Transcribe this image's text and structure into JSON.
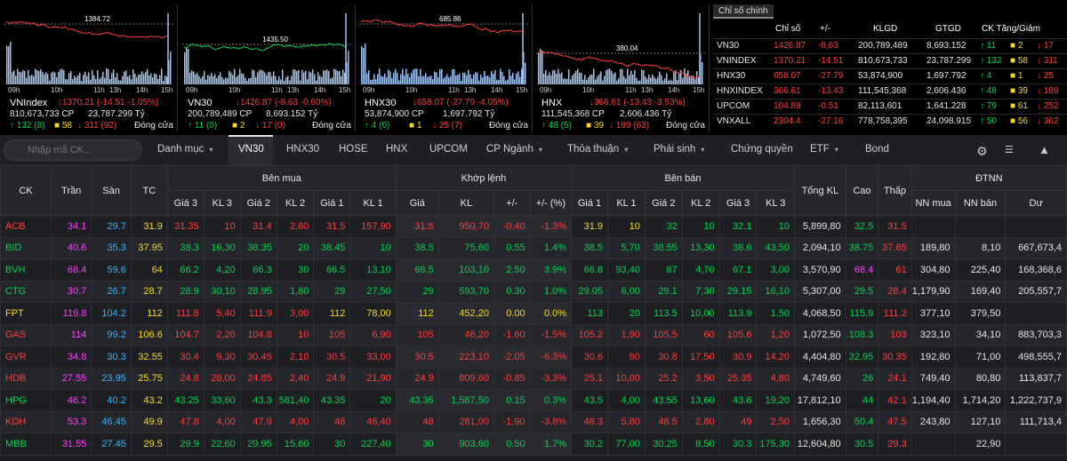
{
  "mini_charts": [
    {
      "name": "VNIndex",
      "change": "↓1370.21 (-14.51 -1.05%)",
      "ref": "1384.72",
      "vol": "810,673,733 CP",
      "val": "23,787.299 Tỷ",
      "up": "132",
      "ref_cnt": "8",
      "ceil": "",
      "down": "58",
      "floor": "311",
      "extra": "92",
      "up_label": "↑ 132 (8)",
      "down_label": "↓ 311 (92)",
      "mid": "■ 58",
      "status": "Đóng cửa"
    },
    {
      "name": "VN30",
      "change": "↓1426.87 (-8.63 -0.60%)",
      "ref": "1435.50",
      "vol": "200,789,489 CP",
      "val": "8,693.152 Tỷ",
      "up_label": "↑ 11 (0)",
      "mid": "■ 2",
      "down_label": "↓ 17 (0)",
      "status": "Đóng cửa"
    },
    {
      "name": "HNX30",
      "change": "↓658.07 (-27.79 -4.05%)",
      "ref": "685.86",
      "vol": "53,874,900 CP",
      "val": "1,697.792 Tỷ",
      "up_label": "↑ 4 (0)",
      "mid": "■ 1",
      "down_label": "↓ 25 (7)",
      "status": "Đóng cửa"
    },
    {
      "name": "HNX",
      "change": "↓366.61 (-13.43 -3.53%)",
      "ref": "380.04",
      "vol": "111,545,368 CP",
      "val": "2,606.436 Tỷ",
      "up_label": "↑ 48 (5)",
      "mid": "■ 39",
      "down_label": "↓ 189 (63)",
      "status": "Đóng cửa"
    }
  ],
  "x_ticks": [
    "09h",
    "10h",
    "11h",
    "13h",
    "14h",
    "15h"
  ],
  "index_table": {
    "tab": "Chỉ số chính",
    "headers": [
      "Chỉ số",
      "+/-",
      "KLGD",
      "GTGD",
      "CK Tăng/Giảm"
    ],
    "rows": [
      {
        "name": "VN30",
        "value": "1426.87",
        "chg": "-8.63",
        "klgd": "200,789,489",
        "gtgd": "8,693.152",
        "up": "↑ 11",
        "ref": "■ 2",
        "down": "↓ 17"
      },
      {
        "name": "VNINDEX",
        "value": "1370.21",
        "chg": "-14.51",
        "klgd": "810,673,733",
        "gtgd": "23,787.299",
        "up": "↑ 132",
        "ref": "■ 58",
        "down": "↓ 311"
      },
      {
        "name": "HNX30",
        "value": "658.07",
        "chg": "-27.79",
        "klgd": "53,874,900",
        "gtgd": "1,697.792",
        "up": "↑ 4",
        "ref": "■ 1",
        "down": "↓ 25"
      },
      {
        "name": "HNXINDEX",
        "value": "366.61",
        "chg": "-13.43",
        "klgd": "111,545,368",
        "gtgd": "2,606.436",
        "up": "↑ 48",
        "ref": "■ 39",
        "down": "↓ 189"
      },
      {
        "name": "UPCOM",
        "value": "104.89",
        "chg": "-0.51",
        "klgd": "82,113,601",
        "gtgd": "1,641.228",
        "up": "↑ 79",
        "ref": "■ 61",
        "down": "↓ 252"
      },
      {
        "name": "VNXALL",
        "value": "2304.4",
        "chg": "-27.16",
        "klgd": "778,758,395",
        "gtgd": "24,098.915",
        "up": "↑ 50",
        "ref": "■ 56",
        "down": "↓ 362"
      }
    ]
  },
  "toolbar": {
    "search_placeholder": "Nhập mã CK...",
    "tabs": [
      "Danh mục",
      "VN30",
      "HNX30",
      "HOSE",
      "HNX",
      "UPCOM",
      "CP Ngành",
      "Thỏa thuận",
      "Phái sinh",
      "Chứng quyền",
      "ETF",
      "Bond"
    ]
  },
  "table": {
    "groups": {
      "buy": "Bên mua",
      "match": "Khớp lệnh",
      "sell": "Bên bán",
      "foreign": "ĐTNN"
    },
    "cols": {
      "ck": "CK",
      "tran": "Trần",
      "san": "Sàn",
      "tc": "TC",
      "g3": "Giá 3",
      "kl3": "KL 3",
      "g2": "Giá 2",
      "kl2": "KL 2",
      "g1": "Giá 1",
      "kl1": "KL 1",
      "gia": "Giá",
      "kl": "KL",
      "chg": "+/-",
      "pct": "+/- (%)",
      "tong": "Tổng KL",
      "cao": "Cao",
      "thap": "Thấp",
      "nnmua": "NN mua",
      "nnban": "NN bán",
      "du": "Dư"
    },
    "rows": [
      [
        "ACB",
        "34.1",
        "29.7",
        "31.9",
        "31.35",
        "10",
        "31.4",
        "2,60",
        "31.5",
        "157,90",
        "31.5",
        "950,70",
        "-0.40",
        "-1.3%",
        "31.9",
        "10",
        "32",
        "10",
        "32.1",
        "10",
        "5,899,80",
        "32.5",
        "31.5",
        "",
        "",
        ""
      ],
      [
        "BID",
        "40.6",
        "35.3",
        "37.95",
        "38.3",
        "16,30",
        "38.35",
        "20",
        "38.45",
        "10",
        "38.5",
        "75,60",
        "0.55",
        "1.4%",
        "38.5",
        "5,70",
        "38.55",
        "13,30",
        "38.6",
        "43,50",
        "2,094,10",
        "38.75",
        "37.65",
        "189,80",
        "8,10",
        "667,673,4"
      ],
      [
        "BVH",
        "68.4",
        "59.6",
        "64",
        "66.2",
        "4,20",
        "66.3",
        "30",
        "66.5",
        "13,10",
        "66.5",
        "103,10",
        "2.50",
        "3.9%",
        "66.8",
        "93,40",
        "67",
        "4,70",
        "67.1",
        "3,00",
        "3,570,90",
        "68.4",
        "61",
        "304,80",
        "225,40",
        "168,368,6"
      ],
      [
        "CTG",
        "30.7",
        "26.7",
        "28.7",
        "28.9",
        "30,10",
        "28.95",
        "1,80",
        "29",
        "27,50",
        "29",
        "593,70",
        "0.30",
        "1.0%",
        "29.05",
        "6,00",
        "29.1",
        "7,30",
        "29.15",
        "16,10",
        "5,307,00",
        "29.5",
        "28.4",
        "1,179,90",
        "169,40",
        "205,557,7"
      ],
      [
        "FPT",
        "119.8",
        "104.2",
        "112",
        "111.8",
        "5,40",
        "111.9",
        "3,00",
        "112",
        "78,00",
        "112",
        "452,20",
        "0.00",
        "0.0%",
        "113",
        "20",
        "113.5",
        "10,00",
        "113.9",
        "1,50",
        "4,068,50",
        "115.9",
        "111.2",
        "377,10",
        "379,50",
        ""
      ],
      [
        "GAS",
        "114",
        "99.2",
        "106.6",
        "104.7",
        "2,20",
        "104.8",
        "10",
        "105",
        "6,90",
        "105",
        "46,20",
        "-1.60",
        "-1.5%",
        "105.2",
        "1,90",
        "105.5",
        "60",
        "105.6",
        "1,20",
        "1,072,50",
        "108.3",
        "103",
        "323,10",
        "34,10",
        "883,703,3"
      ],
      [
        "GVR",
        "34.8",
        "30.3",
        "32.55",
        "30.4",
        "9,30",
        "30.45",
        "2,10",
        "30.5",
        "33,00",
        "30.5",
        "223,10",
        "-2.05",
        "-6.3%",
        "30.6",
        "90",
        "30.8",
        "17,50",
        "30.9",
        "14,20",
        "4,404,80",
        "32.95",
        "30.35",
        "192,80",
        "71,00",
        "498,555,7"
      ],
      [
        "HDB",
        "27.55",
        "23.95",
        "25.75",
        "24.8",
        "28,00",
        "24.85",
        "2,40",
        "24.9",
        "21,90",
        "24.9",
        "809,60",
        "-0.85",
        "-3.3%",
        "25.1",
        "10,00",
        "25.2",
        "3,50",
        "25.35",
        "4,80",
        "4,749,60",
        "26",
        "24.1",
        "749,40",
        "80,80",
        "113,837,7"
      ],
      [
        "HPG",
        "46.2",
        "40.2",
        "43.2",
        "43.25",
        "33,60",
        "43.3",
        "581,40",
        "43.35",
        "20",
        "43.35",
        "1,587,50",
        "0.15",
        "0.3%",
        "43.5",
        "4,00",
        "43.55",
        "13,60",
        "43.6",
        "19,20",
        "17,812,10",
        "44",
        "42.1",
        "1,194,40",
        "1,714,20",
        "1,222,737,9"
      ],
      [
        "KDH",
        "53.3",
        "46.45",
        "49.9",
        "47.8",
        "4,00",
        "47.9",
        "4,00",
        "48",
        "46,40",
        "48",
        "281,00",
        "-1.90",
        "-3.8%",
        "48.3",
        "5,80",
        "48.5",
        "2,80",
        "49",
        "2,50",
        "1,656,30",
        "50.4",
        "47.5",
        "243,80",
        "127,10",
        "111,713,4"
      ],
      [
        "MBB",
        "31.55",
        "27.45",
        "29.5",
        "29.9",
        "22,60",
        "29.95",
        "15,60",
        "30",
        "227,40",
        "30",
        "903,60",
        "0.50",
        "1.7%",
        "30.2",
        "77,00",
        "30.25",
        "8,50",
        "30.3",
        "175,30",
        "12,604,80",
        "30.5",
        "29.3",
        "",
        "22,90",
        ""
      ]
    ],
    "colors": {
      "up": "#00d34f",
      "down": "#ff3b3b",
      "ref": "#f5d922",
      "ceil": "#ff3dff",
      "floor": "#2fb3ff"
    }
  }
}
